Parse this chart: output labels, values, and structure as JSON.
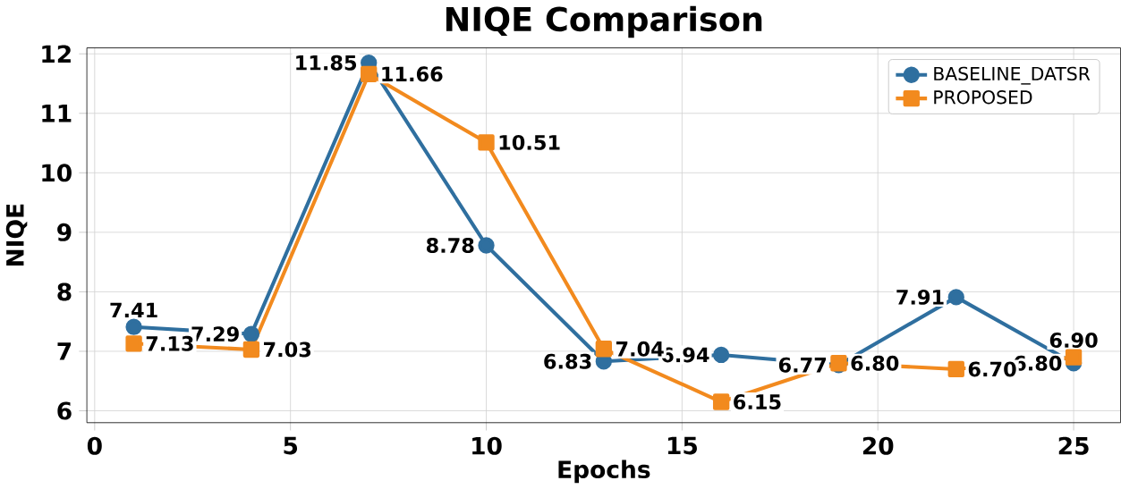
{
  "chart_data": {
    "type": "line",
    "title": "NIQE Comparison",
    "xlabel": "Epochs",
    "ylabel": "NIQE",
    "x": [
      1,
      4,
      7,
      10,
      13,
      16,
      19,
      22,
      25
    ],
    "series": [
      {
        "name": "BASELINE_DATSR",
        "color": "#2f6f9f",
        "marker": "circle",
        "values": [
          7.41,
          7.29,
          11.85,
          8.78,
          6.83,
          6.94,
          6.77,
          7.91,
          6.8
        ],
        "value_labels": [
          "7.41",
          "7.29",
          "11.85",
          "8.78",
          "6.83",
          "6.94",
          "6.77",
          "7.91",
          "6.80"
        ]
      },
      {
        "name": "PROPOSED",
        "color": "#f28a1e",
        "marker": "square",
        "values": [
          7.13,
          7.03,
          11.66,
          10.51,
          7.04,
          6.15,
          6.8,
          6.7,
          6.9
        ],
        "value_labels": [
          "7.13",
          "7.03",
          "11.66",
          "10.51",
          "7.04",
          "6.15",
          "6.80",
          "6.70",
          "6.90"
        ]
      }
    ],
    "xlim": [
      -0.2,
      26.2
    ],
    "ylim": [
      5.8,
      12.1
    ],
    "xticks": [
      0,
      5,
      10,
      15,
      20,
      25
    ],
    "yticks": [
      6,
      7,
      8,
      9,
      10,
      11,
      12
    ],
    "grid": true,
    "legend": "top right",
    "line_style": "solid"
  }
}
